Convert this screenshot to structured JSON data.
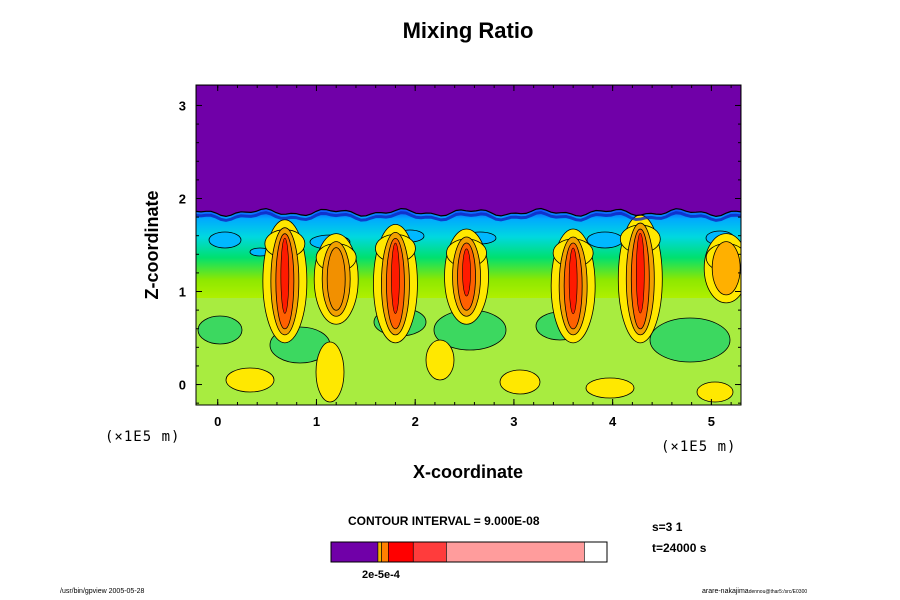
{
  "colors": {
    "background": "#ffffff",
    "frame": "#000000",
    "contour": "#000000"
  },
  "chart_data": {
    "type": "heatmap",
    "title": "Mixing Ratio",
    "xlabel": "X-coordinate",
    "ylabel": "Z-coordinate",
    "x_unit_label": "(×1E5 m)",
    "y_unit_label": "(×1E5 m)",
    "xlim": [
      -0.22,
      5.3
    ],
    "ylim": [
      -0.22,
      3.22
    ],
    "x_ticks": [
      "0",
      "1",
      "2",
      "3",
      "4",
      "5"
    ],
    "y_ticks": [
      "0",
      "1",
      "2",
      "3"
    ],
    "field_description_levels": [
      "dry upper layer",
      "moist layer top",
      "mixed layer",
      "plume core"
    ],
    "upper_layer_base_z": 1.85,
    "plumes": [
      {
        "x": 0.68,
        "z_bottom": 0.62,
        "z_top": 1.6,
        "core": "high"
      },
      {
        "x": 1.2,
        "z_bottom": 0.82,
        "z_top": 1.45,
        "core": "medium"
      },
      {
        "x": 1.8,
        "z_bottom": 0.62,
        "z_top": 1.55,
        "core": "high"
      },
      {
        "x": 2.52,
        "z_bottom": 0.82,
        "z_top": 1.5,
        "core": "high"
      },
      {
        "x": 3.6,
        "z_bottom": 0.62,
        "z_top": 1.5,
        "core": "high"
      },
      {
        "x": 4.28,
        "z_bottom": 0.62,
        "z_top": 1.65,
        "core": "high"
      },
      {
        "x": 5.15,
        "z_bottom": 1.05,
        "z_top": 1.45,
        "core": "low"
      }
    ],
    "colorbar": {
      "colors": [
        "#7000a8",
        "#f2b500",
        "#ff8000",
        "#ff0000",
        "#ff3c3c",
        "#ff9c9c"
      ],
      "label": "2e-5e-4"
    },
    "contour_interval": "CONTOUR INTERVAL = 9.000E-08",
    "step_label": "s=3 1",
    "time_label": "t=24000 s"
  },
  "footer": {
    "left": "/usr/bin/gpview 2005-05-28",
    "right_main": "arare-nakajima",
    "right_small": "dennou@thar5:/src/E0300"
  }
}
